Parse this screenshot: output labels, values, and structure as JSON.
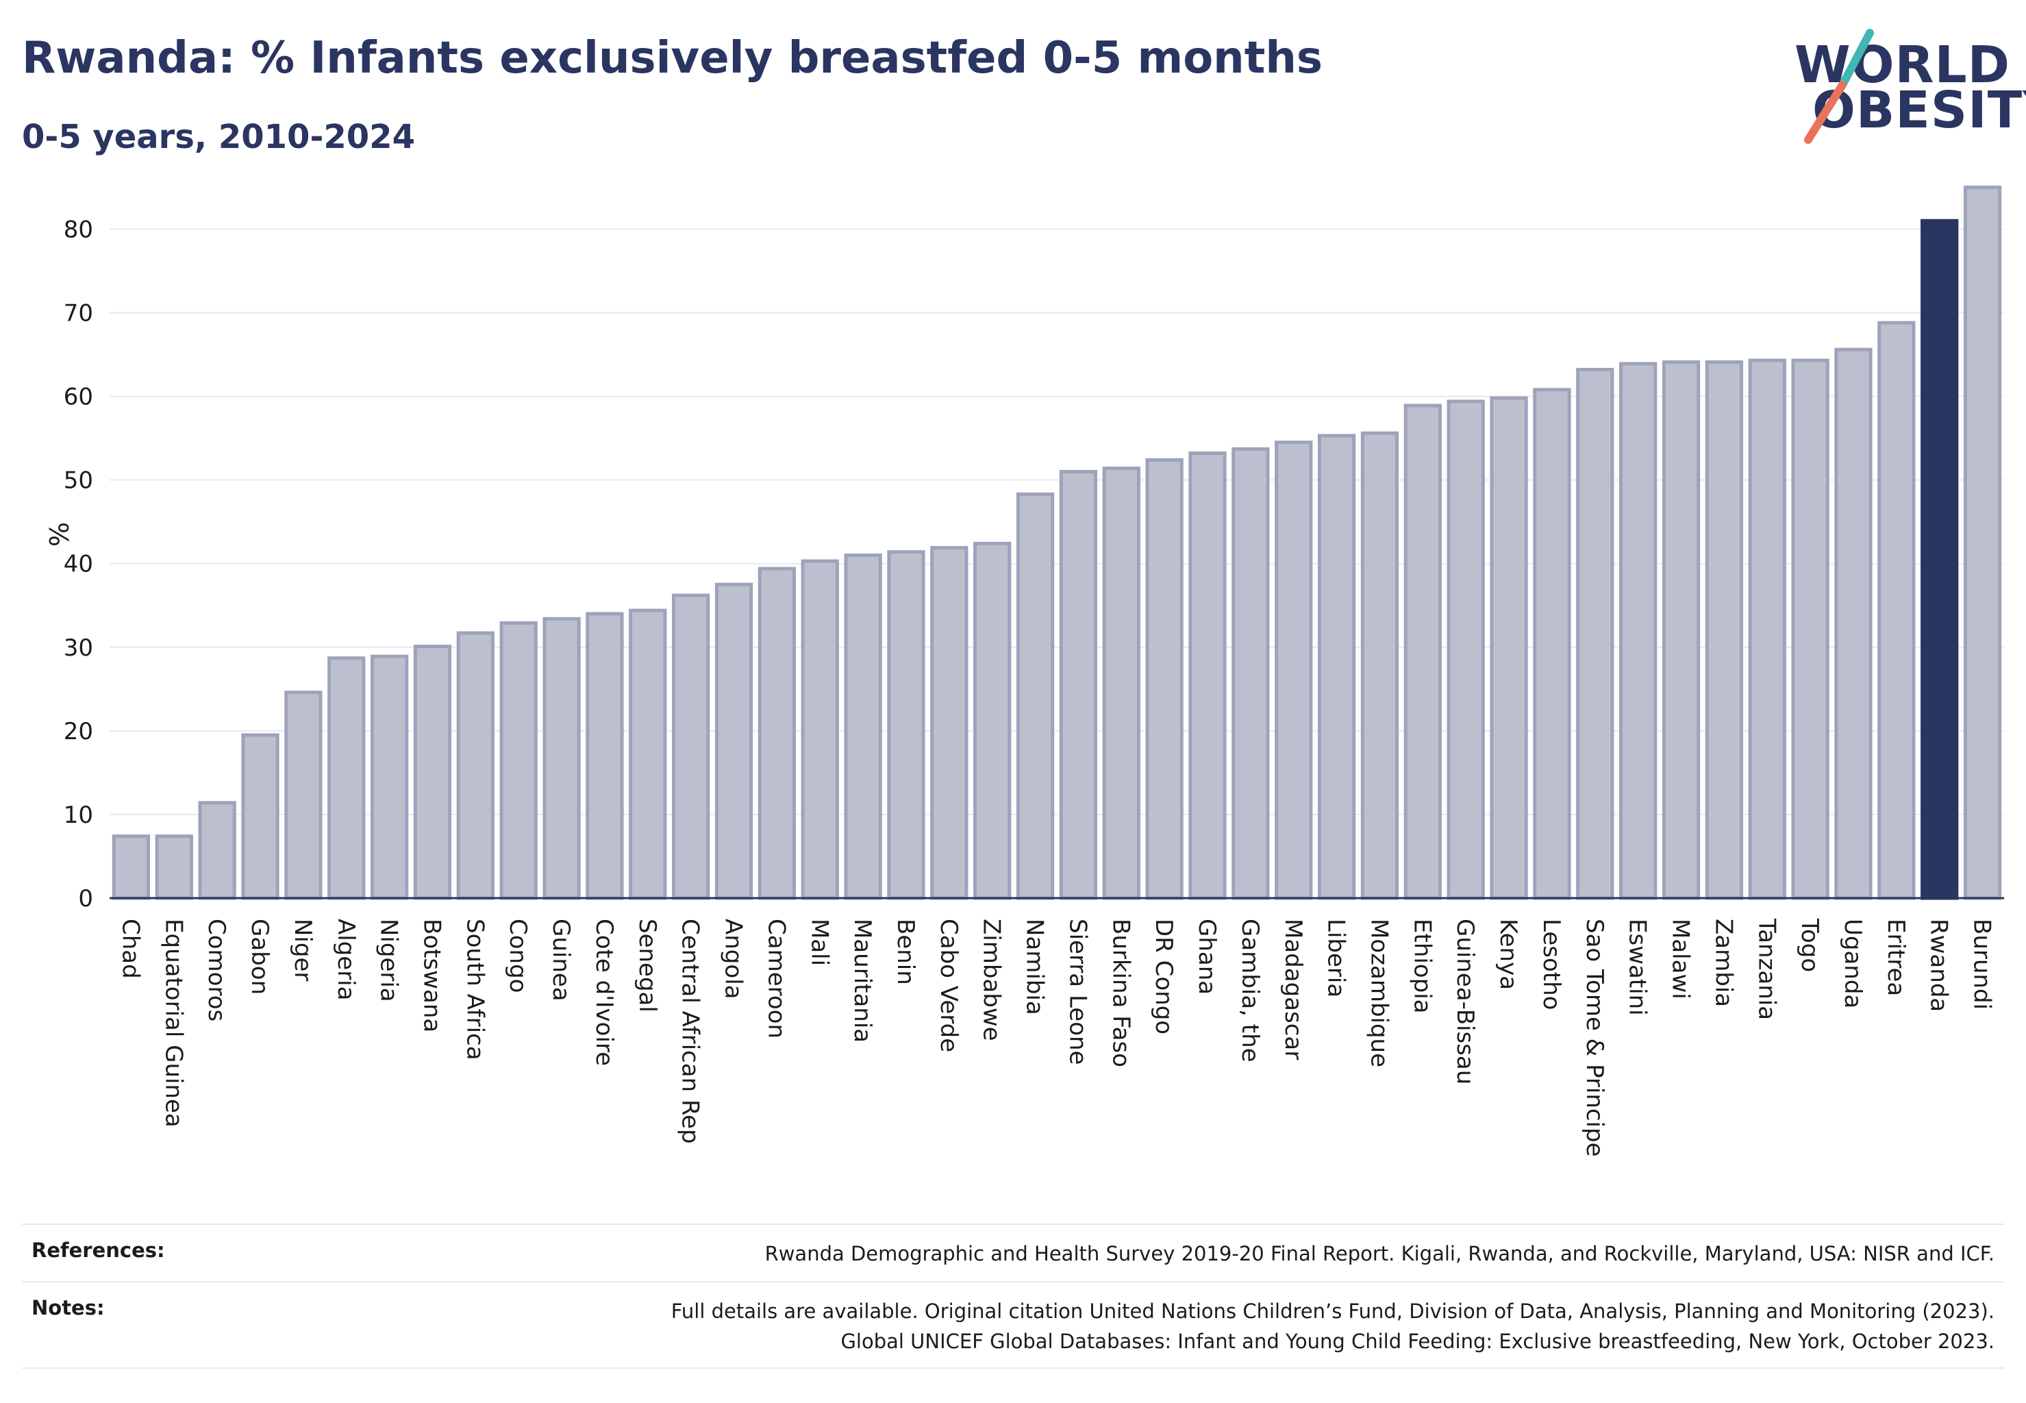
{
  "header": {
    "title": "Rwanda: % Infants exclusively breastfed 0-5 months",
    "subtitle": "0-5 years, 2010-2024"
  },
  "logo": {
    "line1": "WORLD",
    "line2": "OBESITY",
    "accent_teal": "#3fb8b3",
    "accent_coral": "#e8735a"
  },
  "colors": {
    "bar": "#bcc0ce",
    "bar_stroke": "#9ea3ba",
    "highlight": "#2b3561",
    "grid": "#e6e8ef",
    "axis": "#2b3561"
  },
  "chart_data": {
    "type": "bar",
    "ylabel": "%",
    "ylim": [
      0,
      87
    ],
    "yticks": [
      0,
      10,
      20,
      30,
      40,
      50,
      60,
      70,
      80
    ],
    "highlight": "Rwanda",
    "categories": [
      "Chad",
      "Equatorial Guinea",
      "Comoros",
      "Gabon",
      "Niger",
      "Algeria",
      "Nigeria",
      "Botswana",
      "South Africa",
      "Congo",
      "Guinea",
      "Cote d'Ivoire",
      "Senegal",
      "Central African Rep",
      "Angola",
      "Cameroon",
      "Mali",
      "Mauritania",
      "Benin",
      "Cabo Verde",
      "Zimbabwe",
      "Namibia",
      "Sierra Leone",
      "Burkina Faso",
      "DR Congo",
      "Ghana",
      "Gambia, the",
      "Madagascar",
      "Liberia",
      "Mozambique",
      "Ethiopia",
      "Guinea-Bissau",
      "Kenya",
      "Lesotho",
      "Sao Tome & Principe",
      "Eswatini",
      "Malawi",
      "Zambia",
      "Tanzania",
      "Togo",
      "Uganda",
      "Eritrea",
      "Rwanda",
      "Burundi"
    ],
    "values": [
      7.4,
      7.4,
      11.4,
      19.5,
      24.6,
      28.7,
      28.9,
      30.1,
      31.7,
      32.9,
      33.4,
      34.0,
      34.4,
      36.2,
      37.5,
      39.4,
      40.3,
      41.0,
      41.4,
      41.9,
      42.4,
      48.3,
      51.0,
      51.4,
      52.4,
      53.2,
      53.7,
      54.5,
      55.3,
      55.6,
      58.9,
      59.4,
      59.8,
      60.8,
      63.2,
      63.9,
      64.1,
      64.1,
      64.3,
      64.3,
      65.6,
      68.8,
      81.0,
      85.0
    ]
  },
  "footer": {
    "references_label": "References:",
    "references_text": "Rwanda Demographic and Health Survey 2019-20 Final Report. Kigali, Rwanda, and Rockville, Maryland, USA: NISR and ICF.",
    "notes_label": "Notes:",
    "notes_line1": "Full details are available. Original citation United Nations Children’s Fund, Division of Data, Analysis, Planning and Monitoring (2023).",
    "notes_line2": "Global UNICEF Global Databases: Infant and Young Child Feeding: Exclusive breastfeeding, New York, October 2023."
  }
}
